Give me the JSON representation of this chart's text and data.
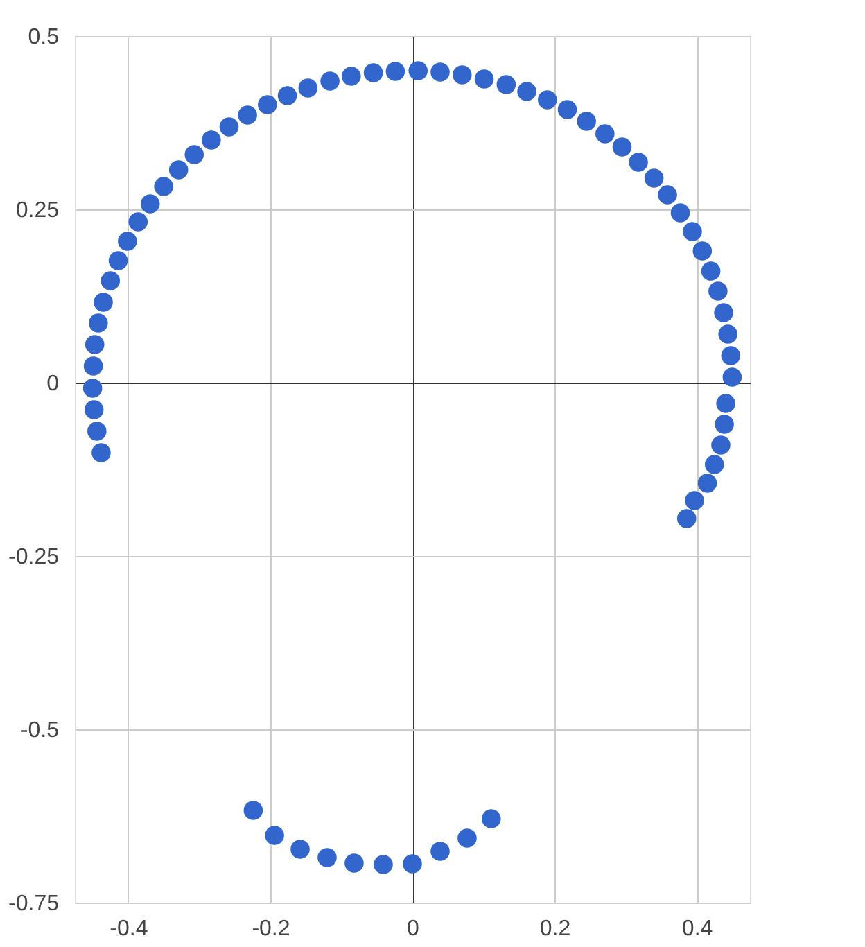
{
  "chart_data": {
    "type": "scatter",
    "xlim": [
      -0.475,
      0.475
    ],
    "xticks": [
      -0.4,
      -0.2,
      0,
      0.2,
      0.4
    ],
    "ylim": [
      -0.75,
      0.5
    ],
    "yticks": [
      -0.75,
      -0.5,
      -0.25,
      0,
      0.25,
      0.5
    ],
    "grid": true,
    "marker": "circle",
    "series": [
      {
        "color": "#3366cc",
        "x": [
          0.386,
          0.397,
          0.415,
          0.425,
          0.434,
          0.439,
          0.441,
          0.45,
          0.448,
          0.444,
          0.438,
          0.43,
          0.42,
          0.408,
          0.394,
          0.377,
          0.359,
          0.34,
          0.318,
          0.295,
          0.271,
          0.245,
          0.218,
          0.19,
          0.161,
          0.132,
          0.101,
          0.07,
          0.039,
          0.008,
          -0.024,
          -0.055,
          -0.086,
          -0.116,
          -0.147,
          -0.176,
          -0.204,
          -0.232,
          -0.258,
          -0.283,
          -0.307,
          -0.329,
          -0.35,
          -0.369,
          -0.386,
          -0.401,
          -0.414,
          -0.425,
          -0.435,
          -0.442,
          -0.447,
          -0.449,
          -0.45,
          -0.448,
          -0.444,
          -0.438,
          -0.224,
          -0.194,
          -0.158,
          -0.12,
          -0.082,
          -0.041,
          0.0,
          0.039,
          0.077,
          0.111
        ],
        "values": [
          -0.196,
          -0.17,
          -0.145,
          -0.118,
          -0.09,
          -0.06,
          -0.03,
          0.008,
          0.039,
          0.07,
          0.101,
          0.132,
          0.161,
          0.19,
          0.218,
          0.245,
          0.271,
          0.295,
          0.318,
          0.34,
          0.359,
          0.377,
          0.394,
          0.408,
          0.42,
          0.43,
          0.438,
          0.444,
          0.448,
          0.45,
          0.449,
          0.447,
          0.442,
          0.435,
          0.425,
          0.414,
          0.401,
          0.386,
          0.369,
          0.35,
          0.329,
          0.307,
          0.283,
          0.258,
          0.232,
          0.204,
          0.176,
          0.147,
          0.116,
          0.086,
          0.055,
          0.024,
          -0.008,
          -0.039,
          -0.07,
          -0.101,
          -0.617,
          -0.653,
          -0.673,
          -0.685,
          -0.693,
          -0.695,
          -0.694,
          -0.676,
          -0.657,
          -0.629
        ]
      }
    ]
  }
}
